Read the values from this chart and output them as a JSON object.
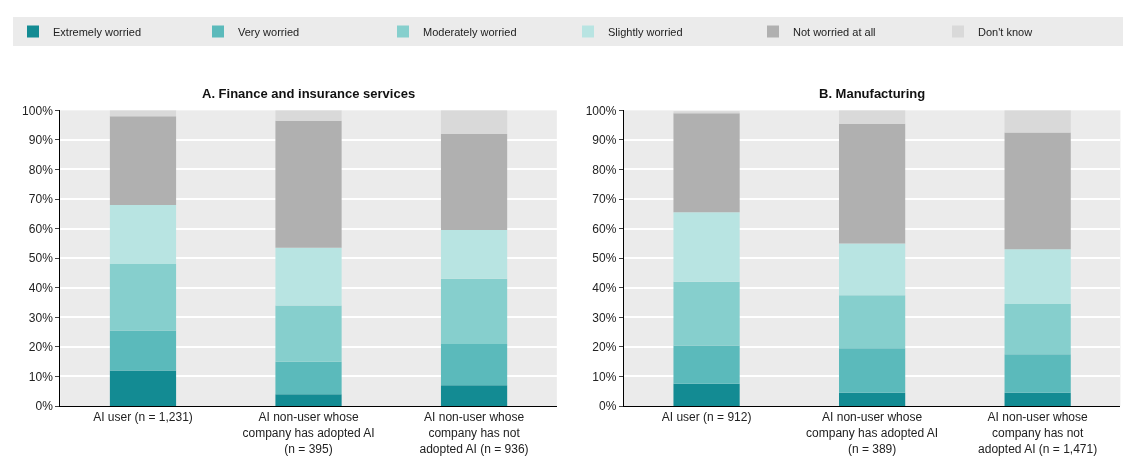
{
  "chart_data": [
    {
      "type": "bar",
      "stacked": true,
      "title": "A. Finance and insurance services",
      "legend": "top",
      "grid": "y",
      "categories": [
        "AI user (n = 1,231)",
        "AI non-user whose company has adopted AI (n = 395)",
        "AI non-user whose company has not adopted AI (n = 936)"
      ],
      "ylim": [
        0,
        100
      ],
      "yticks": [
        {
          "value": 0,
          "label": "0%"
        },
        {
          "value": 10,
          "label": "10%"
        },
        {
          "value": 20,
          "label": "20%"
        },
        {
          "value": 30,
          "label": "30%"
        },
        {
          "value": 40,
          "label": "40%"
        },
        {
          "value": 50,
          "label": "50%"
        },
        {
          "value": 60,
          "label": "60%"
        },
        {
          "value": 70,
          "label": "70%"
        },
        {
          "value": 80,
          "label": "80%"
        },
        {
          "value": 90,
          "label": "90%"
        },
        {
          "value": 100,
          "label": "100%"
        }
      ],
      "series": [
        {
          "name": "Extremely worried",
          "color": "#138b93",
          "values": [
            12,
            4,
            7
          ]
        },
        {
          "name": "Very worried",
          "color": "#5bbabb",
          "values": [
            13.5,
            11,
            14
          ]
        },
        {
          "name": "Moderately worried",
          "color": "#86cfcd",
          "values": [
            22.5,
            19,
            22
          ]
        },
        {
          "name": "Slightly worried",
          "color": "#b8e4e2",
          "values": [
            20,
            19.5,
            16.5
          ]
        },
        {
          "name": "Not worried at all",
          "color": "#b0b0b0",
          "values": [
            30,
            43,
            32.5
          ]
        },
        {
          "name": "Don't know",
          "color": "#d9d9d9",
          "values": [
            2,
            3.5,
            8
          ]
        }
      ]
    },
    {
      "type": "bar",
      "stacked": true,
      "title": "B. Manufacturing",
      "grid": "y",
      "categories": [
        "AI user (n = 912)",
        "AI non-user whose company has adopted AI (n = 389)",
        "AI non-user whose company has not adopted AI (n = 1,471)"
      ],
      "ylim": [
        0,
        100
      ],
      "yticks": [
        {
          "value": 0,
          "label": "0%"
        },
        {
          "value": 10,
          "label": "10%"
        },
        {
          "value": 20,
          "label": "20%"
        },
        {
          "value": 30,
          "label": "30%"
        },
        {
          "value": 40,
          "label": "40%"
        },
        {
          "value": 50,
          "label": "50%"
        },
        {
          "value": 60,
          "label": "60%"
        },
        {
          "value": 70,
          "label": "70%"
        },
        {
          "value": 80,
          "label": "80%"
        },
        {
          "value": 90,
          "label": "90%"
        },
        {
          "value": 100,
          "label": "100%"
        }
      ],
      "series": [
        {
          "color": "#138b93",
          "values": [
            7.5,
            4.5,
            4.5
          ]
        },
        {
          "color": "#5bbabb",
          "values": [
            13,
            15,
            13
          ]
        },
        {
          "color": "#86cfcd",
          "values": [
            21.5,
            18,
            17
          ]
        },
        {
          "color": "#b8e4e2",
          "values": [
            23.5,
            17.5,
            18.5
          ]
        },
        {
          "color": "#b0b0b0",
          "values": [
            33.5,
            40.5,
            39.5
          ]
        },
        {
          "color": "#d9d9d9",
          "values": [
            0.5,
            4.5,
            7.5
          ]
        }
      ]
    }
  ]
}
